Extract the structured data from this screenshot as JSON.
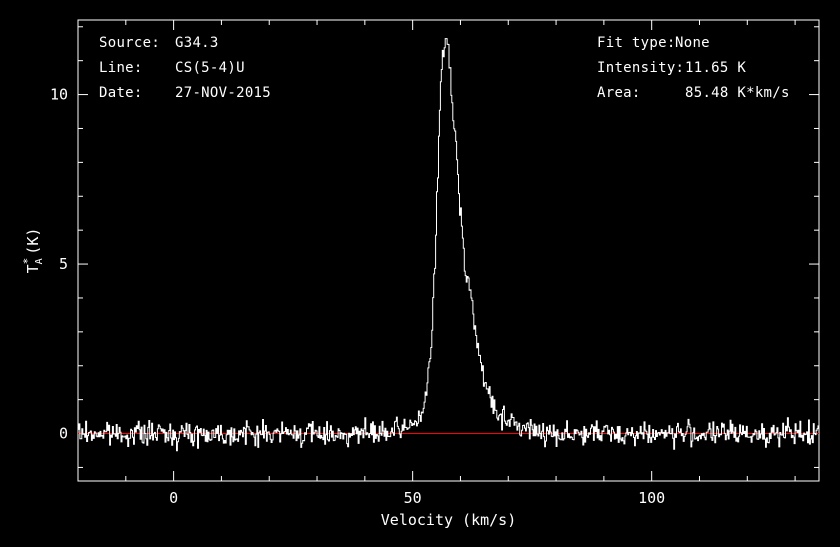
{
  "chart_data": {
    "type": "line",
    "style": "step",
    "xlabel": "Velocity (km/s)",
    "ylabel": "T_A* (K)",
    "xlim": [
      -20,
      135
    ],
    "ylim": [
      -1.4,
      12.2
    ],
    "xticks": [
      0,
      50,
      100
    ],
    "yticks": [
      0,
      5,
      10
    ],
    "colors": {
      "background": "#000000",
      "axes": "#ffffff",
      "spectrum": "#ffffff",
      "baseline": "#ff0000"
    },
    "baseline": {
      "y": 0,
      "x_range": [
        -20,
        135
      ]
    },
    "grid": false,
    "series": [
      {
        "label": "spectrum",
        "x": [
          -20,
          -15,
          -10,
          -5,
          0,
          5,
          10,
          15,
          20,
          25,
          30,
          35,
          40,
          45,
          48,
          50,
          52,
          53,
          54,
          55,
          55.5,
          56,
          56.5,
          57,
          57.5,
          58,
          59,
          60,
          61,
          62,
          63,
          64,
          65,
          67,
          70,
          75,
          80,
          90,
          100,
          110,
          120,
          135
        ],
        "y": [
          0,
          0,
          0,
          0,
          0,
          0,
          0,
          0,
          0,
          0,
          0,
          0,
          0,
          0,
          0.1,
          0.3,
          0.6,
          1.2,
          2.8,
          6.2,
          8.8,
          10.6,
          11.5,
          11.65,
          11.3,
          10.2,
          8.6,
          6.6,
          5.0,
          4.3,
          3.2,
          2.2,
          1.5,
          0.8,
          0.3,
          0.1,
          0,
          0,
          0,
          0,
          0,
          0
        ]
      }
    ],
    "annotations": {
      "left": [
        {
          "key": "Source:",
          "value": "G34.3"
        },
        {
          "key": "Line:",
          "value": "CS(5-4)U"
        },
        {
          "key": "Date:",
          "value": "27-NOV-2015"
        }
      ],
      "right": [
        {
          "key": "Fit type:",
          "value": "None"
        },
        {
          "key": "Intensity:",
          "value": "11.65 K"
        },
        {
          "key": "Area:",
          "value": "85.48 K*km/s"
        }
      ]
    }
  }
}
